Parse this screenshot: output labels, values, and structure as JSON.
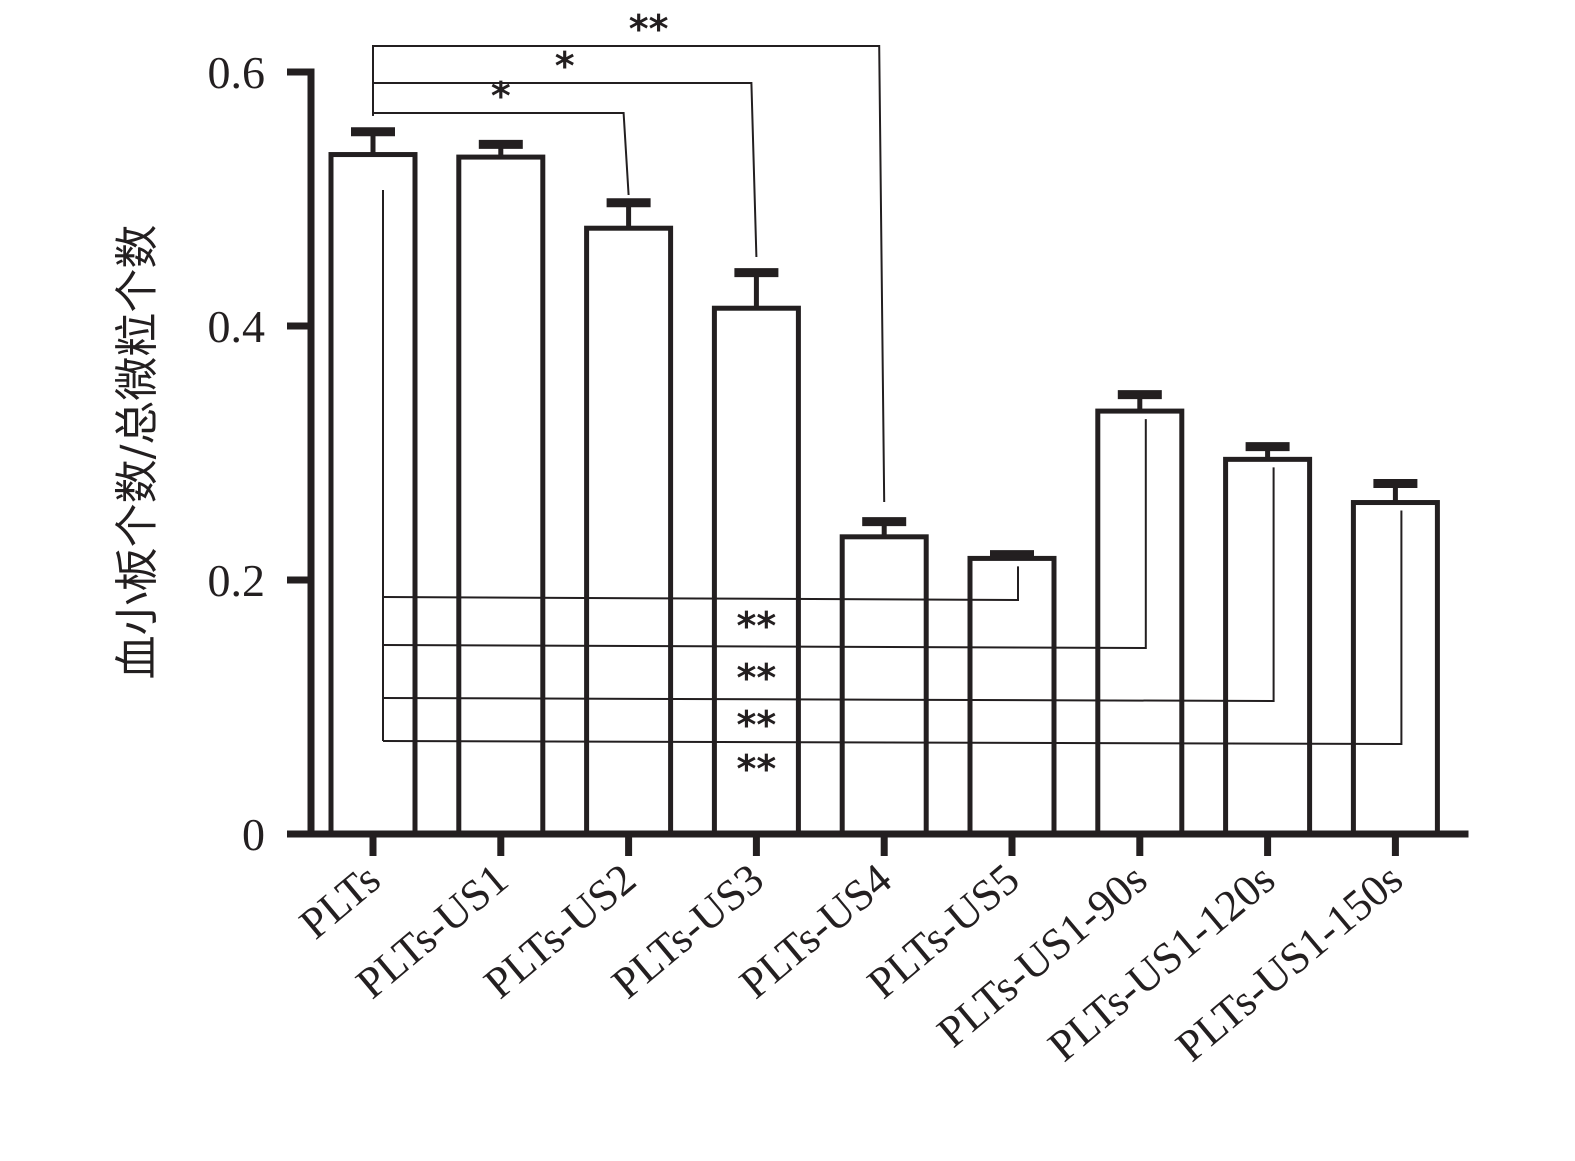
{
  "chart_data": {
    "type": "bar",
    "title": "",
    "xlabel": "",
    "ylabel": "血小板个数/总微粒个数",
    "ylim": [
      0,
      0.6
    ],
    "yticks": [
      "0",
      "0.2",
      "0.4",
      "0.6"
    ],
    "ytick_values": [
      0,
      0.2,
      0.4,
      0.6
    ],
    "grid": false,
    "categories": [
      "PLTs",
      "PLTs-US1",
      "PLTs-US2",
      "PLTs-US3",
      "PLTs-US4",
      "PLTs-US5",
      "PLTs-US1-90s",
      "PLTs-US1-120s",
      "PLTs-US1-150s"
    ],
    "values": [
      0.535,
      0.533,
      0.477,
      0.414,
      0.234,
      0.217,
      0.333,
      0.295,
      0.261
    ],
    "errors": [
      0.018,
      0.01,
      0.02,
      0.028,
      0.012,
      0.003,
      0.013,
      0.01,
      0.015
    ],
    "colors": {
      "bar_fill": "#ffffff",
      "stroke": "#231f20"
    },
    "significance": [
      {
        "from": 0,
        "to": 2,
        "label": "*",
        "position": "above"
      },
      {
        "from": 0,
        "to": 3,
        "label": "*",
        "position": "above"
      },
      {
        "from": 0,
        "to": 4,
        "label": "**",
        "position": "above"
      },
      {
        "from": 0,
        "to": 5,
        "label": "**",
        "position": "below"
      },
      {
        "from": 0,
        "to": 6,
        "label": "**",
        "position": "below"
      },
      {
        "from": 0,
        "to": 7,
        "label": "**",
        "position": "below"
      },
      {
        "from": 0,
        "to": 8,
        "label": "**",
        "position": "below"
      }
    ]
  }
}
